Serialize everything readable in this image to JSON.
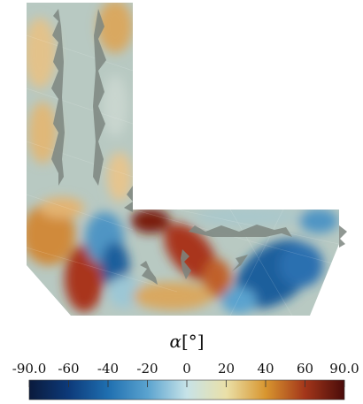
{
  "colorbar": {
    "title_symbol": "α",
    "title_unit": "[°]",
    "tick_labels": [
      "-90.0",
      "-60",
      "-40",
      "-20",
      "0",
      "20",
      "40",
      "60",
      "90.0"
    ],
    "range": [
      -90,
      90
    ],
    "stops": [
      "#0a1a3c",
      "#0d3a7a",
      "#1f6fb0",
      "#5aa3cf",
      "#c7e3e8",
      "#eae0a8",
      "#d8962f",
      "#a3361a",
      "#4a0c0a"
    ]
  },
  "field_colors": {
    "background_mesh": "#9cc0c8",
    "warm_light": "#e3c28a",
    "orange": "#d08a3a",
    "red": "#a9351c",
    "blue_deep": "#1a5f9c",
    "blue_mid": "#4f95c4",
    "mesh_edge": "#6f7a72"
  }
}
